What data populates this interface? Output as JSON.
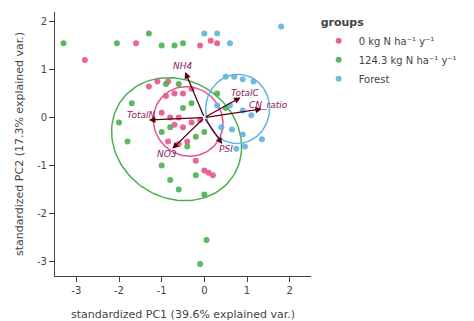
{
  "chart_data": {
    "type": "scatter",
    "xlabel": "standardized PC1 (39.6% explained var.)",
    "ylabel": "standardized PC2 (17.3% explained var.)",
    "xlim": [
      -3.5,
      2.5
    ],
    "ylim": [
      -3.3,
      2.2
    ],
    "xticks": [
      -3,
      -2,
      -1,
      0,
      1,
      2
    ],
    "yticks": [
      -3,
      -2,
      -1,
      0,
      1,
      2
    ],
    "grid": false,
    "legend": "right",
    "legend_title": "groups",
    "marker": "circle",
    "series": [
      {
        "name": "0 kg N ha⁻¹ y⁻¹",
        "color": "#E8538A",
        "x": [
          -2.8,
          -1.6,
          -1.3,
          -1.1,
          -0.85,
          -0.9,
          -0.7,
          -0.5,
          -0.3,
          -1.0,
          -0.8,
          -0.6,
          -0.7,
          -0.5,
          -0.3,
          -0.1,
          -0.85,
          -0.6,
          -0.4,
          -0.2,
          0.0,
          0.1,
          0.2,
          -0.1,
          0.15,
          0.3
        ],
        "y": [
          1.2,
          1.55,
          0.65,
          0.75,
          0.75,
          0.45,
          0.5,
          0.5,
          0.6,
          0.1,
          0.0,
          0.0,
          -0.15,
          -0.2,
          -0.1,
          -0.05,
          -0.5,
          -0.55,
          -0.5,
          -0.9,
          -1.1,
          -1.15,
          -1.2,
          1.5,
          1.6,
          1.55
        ],
        "ellipse": {
          "cx": -0.38,
          "cy": -0.08,
          "rx": 0.82,
          "ry": 0.72,
          "angle": -12
        }
      },
      {
        "name": "124.3 kg N ha⁻¹ y⁻¹",
        "color": "#4CAF50",
        "x": [
          -3.3,
          -2.05,
          -1.7,
          -2.0,
          -1.8,
          -1.3,
          -1.0,
          -0.7,
          -0.5,
          -0.9,
          -0.6,
          -1.0,
          -0.8,
          -0.5,
          -0.3,
          -0.4,
          -0.2,
          0.0,
          -0.2,
          0.0,
          -0.6,
          -0.8,
          -1.0,
          -0.1,
          0.05,
          0.3,
          0.5
        ],
        "y": [
          1.55,
          1.55,
          0.3,
          -0.1,
          -0.5,
          1.75,
          1.5,
          1.5,
          1.55,
          0.7,
          0.7,
          -0.3,
          -0.2,
          0.2,
          0.3,
          -0.6,
          -0.4,
          -0.3,
          -1.2,
          -1.6,
          -1.5,
          -1.3,
          -1.0,
          -3.05,
          -2.55,
          0.5,
          0.2
        ],
        "ellipse": {
          "cx": -0.65,
          "cy": -0.45,
          "rx": 1.55,
          "ry": 1.25,
          "angle": -18
        }
      },
      {
        "name": "Forest",
        "color": "#62B3E0",
        "x": [
          0.0,
          0.3,
          0.6,
          1.8,
          0.5,
          0.7,
          0.9,
          1.15,
          0.3,
          0.6,
          0.9,
          1.1,
          0.4,
          0.65,
          0.9,
          1.35,
          0.75,
          0.95
        ],
        "y": [
          1.75,
          1.75,
          1.55,
          1.9,
          0.85,
          0.85,
          0.8,
          0.75,
          0.25,
          0.25,
          0.15,
          0.05,
          -0.2,
          -0.25,
          -0.35,
          -0.45,
          -0.65,
          -0.6
        ],
        "ellipse": {
          "cx": 0.78,
          "cy": 0.18,
          "rx": 0.75,
          "ry": 0.72,
          "angle": 8
        }
      }
    ],
    "arrows": [
      {
        "x": -0.45,
        "y": 0.95,
        "color": "#5C0010"
      },
      {
        "x": 0.85,
        "y": 0.42,
        "color": "#5C0010"
      },
      {
        "x": 1.35,
        "y": 0.18,
        "color": "#5C0010"
      },
      {
        "x": -1.3,
        "y": -0.05,
        "color": "#5C0010"
      },
      {
        "x": -0.75,
        "y": -0.65,
        "color": "#5C0010"
      },
      {
        "x": 0.42,
        "y": -0.55,
        "color": "#5C0010"
      }
    ],
    "annotations": [
      {
        "text": "NH4",
        "x": -0.5,
        "y": 1.08,
        "color": "#8B1A5E"
      },
      {
        "text": "TotalC",
        "x": 0.95,
        "y": 0.52,
        "color": "#8B1A5E"
      },
      {
        "text": "CN_ratio",
        "x": 1.5,
        "y": 0.26,
        "color": "#8B1A5E"
      },
      {
        "text": "TotalN",
        "x": -1.48,
        "y": 0.05,
        "color": "#8B1A5E"
      },
      {
        "text": "NO3",
        "x": -0.88,
        "y": -0.76,
        "color": "#8B1A5E"
      },
      {
        "text": "PSI",
        "x": 0.5,
        "y": -0.65,
        "color": "#8B1A5E"
      }
    ]
  }
}
